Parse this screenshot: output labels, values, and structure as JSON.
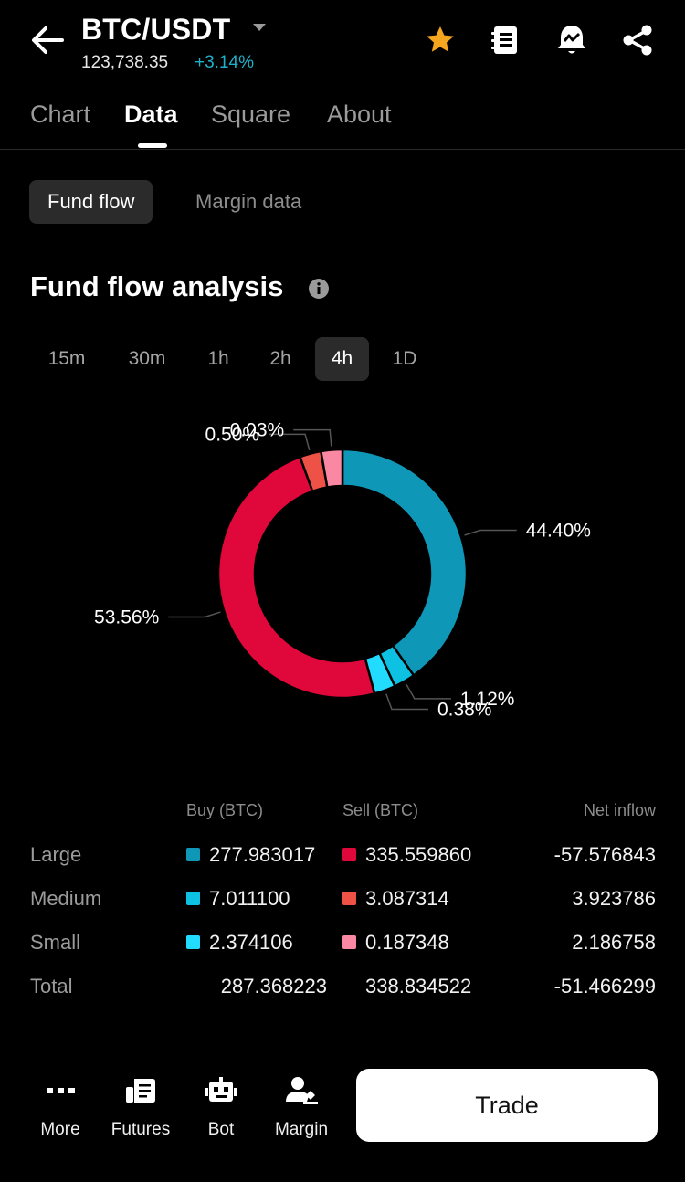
{
  "header": {
    "pair": "BTC/USDT",
    "price": "123,738.35",
    "change": "+3.14%",
    "icons": [
      "back-arrow-icon",
      "chevron-down-icon",
      "star-icon",
      "notebook-icon",
      "alert-bell-icon",
      "share-icon"
    ]
  },
  "tabs": [
    {
      "label": "Chart"
    },
    {
      "label": "Data"
    },
    {
      "label": "Square"
    },
    {
      "label": "About"
    }
  ],
  "subtabs": [
    {
      "label": "Fund flow"
    },
    {
      "label": "Margin data"
    }
  ],
  "section": {
    "title": "Fund flow analysis"
  },
  "intervals": [
    "15m",
    "30m",
    "1h",
    "2h",
    "4h",
    "1D"
  ],
  "selected_interval": "4h",
  "chart_data": {
    "type": "pie",
    "title": "Fund flow analysis",
    "slices": [
      {
        "name": "Large Buy",
        "value": 44.4,
        "label": "44.40%",
        "color": "#0f97b8"
      },
      {
        "name": "Medium Buy",
        "value": 1.12,
        "label": "1.12%",
        "color": "#0dc1e3"
      },
      {
        "name": "Small Buy",
        "value": 0.38,
        "label": "0.38%",
        "color": "#22dcff"
      },
      {
        "name": "Large Sell",
        "value": 53.56,
        "label": "53.56%",
        "color": "#e0073b"
      },
      {
        "name": "Medium Sell",
        "value": 0.5,
        "label": "0.50%",
        "color": "#ee5145"
      },
      {
        "name": "Small Sell",
        "value": 0.03,
        "label": "0.03%",
        "color": "#fa88a2"
      }
    ]
  },
  "table": {
    "headers": {
      "buy": "Buy (BTC)",
      "sell": "Sell (BTC)",
      "net": "Net inflow"
    },
    "rows": [
      {
        "label": "Large",
        "buy": "277.983017",
        "sell": "335.559860",
        "net": "-57.576843",
        "buy_color": "#0f97b8",
        "sell_color": "#e0073b"
      },
      {
        "label": "Medium",
        "buy": "7.011100",
        "sell": "3.087314",
        "net": "3.923786",
        "buy_color": "#0dc1e3",
        "sell_color": "#ee5145"
      },
      {
        "label": "Small",
        "buy": "2.374106",
        "sell": "0.187348",
        "net": "2.186758",
        "buy_color": "#22dcff",
        "sell_color": "#fa88a2"
      }
    ],
    "total": {
      "label": "Total",
      "buy": "287.368223",
      "sell": "338.834522",
      "net": "-51.466299"
    }
  },
  "bottom_nav": [
    {
      "label": "More",
      "icon": "more-dots-icon"
    },
    {
      "label": "Futures",
      "icon": "futures-icon"
    },
    {
      "label": "Bot",
      "icon": "bot-icon"
    },
    {
      "label": "Margin",
      "icon": "margin-icon"
    }
  ],
  "trade_button": "Trade",
  "colors": {
    "accent_up": "#1fb1c8",
    "star": "#f6a51f",
    "background": "#000000"
  }
}
